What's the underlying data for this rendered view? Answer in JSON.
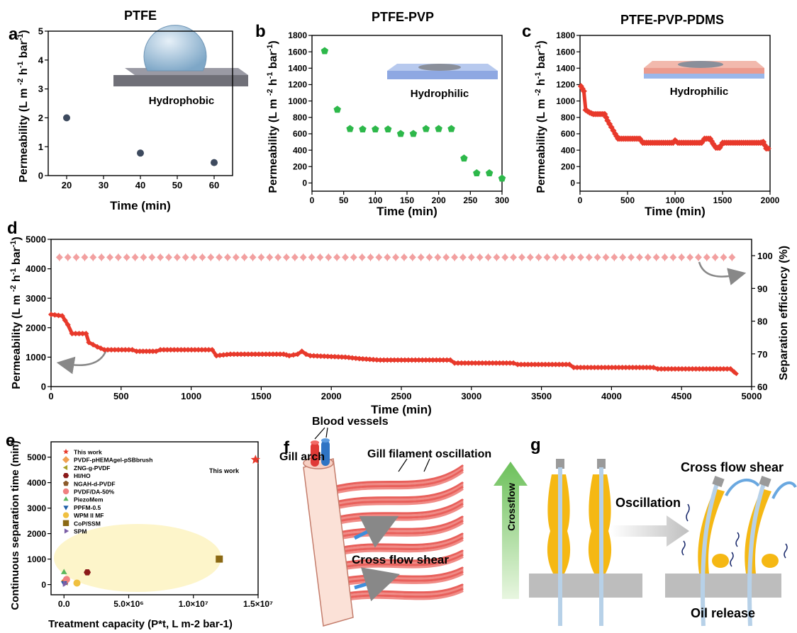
{
  "chart_data": [
    {
      "panel": "a",
      "type": "scatter",
      "title": "PTFE",
      "xlabel": "Time (min)",
      "ylabel": "Permeability (L m-2 h-1 bar-1)",
      "xlim": [
        15,
        65
      ],
      "ylim": [
        0,
        5
      ],
      "xticks": [
        20,
        30,
        40,
        50,
        60
      ],
      "yticks": [
        0,
        1,
        2,
        3,
        4,
        5
      ],
      "annotation": "Hydrophobic",
      "color": "#3d4a5e",
      "points": [
        [
          20,
          2.0
        ],
        [
          40,
          0.78
        ],
        [
          60,
          0.45
        ]
      ]
    },
    {
      "panel": "b",
      "type": "scatter",
      "title": "PTFE-PVP",
      "xlabel": "Time (min)",
      "ylabel": "Permeability (L m-2 h-1 bar-1)",
      "xlim": [
        0,
        300
      ],
      "ylim": [
        -100,
        1800
      ],
      "xticks": [
        0,
        50,
        100,
        150,
        200,
        250,
        300
      ],
      "yticks": [
        0,
        200,
        400,
        600,
        800,
        1000,
        1200,
        1400,
        1600,
        1800
      ],
      "annotation": "Hydrophilic",
      "color": "#2db84a",
      "points": [
        [
          20,
          1610
        ],
        [
          40,
          895
        ],
        [
          60,
          660
        ],
        [
          80,
          655
        ],
        [
          100,
          655
        ],
        [
          120,
          655
        ],
        [
          140,
          600
        ],
        [
          160,
          600
        ],
        [
          180,
          660
        ],
        [
          200,
          660
        ],
        [
          220,
          660
        ],
        [
          240,
          300
        ],
        [
          260,
          120
        ],
        [
          280,
          120
        ],
        [
          300,
          55
        ]
      ]
    },
    {
      "panel": "c",
      "type": "line",
      "title": "PTFE-PVP-PDMS",
      "xlabel": "Time (min)",
      "ylabel": "Permeability (L m-2 h-1 bar-1)",
      "xlim": [
        0,
        2000
      ],
      "ylim": [
        -100,
        1800
      ],
      "xticks": [
        0,
        500,
        1000,
        1500,
        2000
      ],
      "yticks": [
        0,
        200,
        400,
        600,
        800,
        1000,
        1200,
        1400,
        1600,
        1800
      ],
      "annotation": "Hydrophilic",
      "color": "#e8392b",
      "points": [
        [
          10,
          1180
        ],
        [
          40,
          1120
        ],
        [
          60,
          890
        ],
        [
          100,
          860
        ],
        [
          140,
          840
        ],
        [
          260,
          840
        ],
        [
          290,
          760
        ],
        [
          330,
          680
        ],
        [
          370,
          600
        ],
        [
          400,
          540
        ],
        [
          630,
          540
        ],
        [
          660,
          490
        ],
        [
          980,
          490
        ],
        [
          1000,
          520
        ],
        [
          1030,
          490
        ],
        [
          1280,
          490
        ],
        [
          1310,
          540
        ],
        [
          1370,
          540
        ],
        [
          1400,
          480
        ],
        [
          1430,
          430
        ],
        [
          1470,
          430
        ],
        [
          1500,
          490
        ],
        [
          1900,
          490
        ],
        [
          1930,
          500
        ],
        [
          1960,
          420
        ],
        [
          2000,
          420
        ]
      ]
    },
    {
      "panel": "d",
      "type": "line",
      "xlabel": "Time (min)",
      "ylabel": "Permeability (L m-2 h-1 bar-1)",
      "y2label": "Separation efficiency (%)",
      "xlim": [
        0,
        5000
      ],
      "ylim": [
        0,
        5000
      ],
      "y2lim": [
        60,
        105
      ],
      "xticks": [
        0,
        500,
        1000,
        1500,
        2000,
        2500,
        3000,
        3500,
        4000,
        4500,
        5000
      ],
      "yticks": [
        0,
        1000,
        2000,
        3000,
        4000,
        5000
      ],
      "y2ticks": [
        60,
        70,
        80,
        90,
        100
      ],
      "series": [
        {
          "color": "#e8392b",
          "points": [
            [
              0,
              2450
            ],
            [
              80,
              2400
            ],
            [
              120,
              2100
            ],
            [
              150,
              1800
            ],
            [
              250,
              1800
            ],
            [
              270,
              1500
            ],
            [
              330,
              1350
            ],
            [
              380,
              1250
            ],
            [
              580,
              1250
            ],
            [
              610,
              1200
            ],
            [
              750,
              1200
            ],
            [
              780,
              1250
            ],
            [
              1150,
              1250
            ],
            [
              1180,
              1050
            ],
            [
              1280,
              1100
            ],
            [
              1660,
              1100
            ],
            [
              1700,
              1050
            ],
            [
              1760,
              1100
            ],
            [
              1790,
              1200
            ],
            [
              1820,
              1100
            ],
            [
              1850,
              1050
            ],
            [
              2100,
              1000
            ],
            [
              2200,
              950
            ],
            [
              2350,
              900
            ],
            [
              2850,
              900
            ],
            [
              2880,
              800
            ],
            [
              3300,
              800
            ],
            [
              3330,
              750
            ],
            [
              3700,
              750
            ],
            [
              3730,
              650
            ],
            [
              4300,
              650
            ],
            [
              4330,
              600
            ],
            [
              4850,
              600
            ],
            [
              4900,
              400
            ]
          ]
        },
        {
          "axis": "right",
          "color": "#f2a0a0",
          "y_value": 99.5,
          "error": 1.2
        }
      ]
    },
    {
      "panel": "e",
      "type": "scatter",
      "xlabel": "Treatment capacity (P*t, L m-2 bar-1)",
      "ylabel": "Continuous separation time (min)",
      "xlim": [
        -1000000,
        15000000
      ],
      "ylim": [
        -400,
        5600
      ],
      "xticks": [
        "0.0",
        "5.0×10⁶",
        "1.0×10⁷",
        "1.5×10⁷"
      ],
      "yticks": [
        0,
        1000,
        2000,
        3000,
        4000,
        5000
      ],
      "annotation": "This work",
      "legend": [
        {
          "label": "This work",
          "color": "#e8392b",
          "marker": "star"
        },
        {
          "label": "PVDF-pHEMAgel-pSBbrush",
          "color": "#f0a050",
          "marker": "diamond"
        },
        {
          "label": "ZNG-g-PVDF",
          "color": "#a8a028",
          "marker": "tri-left"
        },
        {
          "label": "HI/HO",
          "color": "#8b1a1a",
          "marker": "hexagon"
        },
        {
          "label": "NGAH-d-PVDF",
          "color": "#8b5a2b",
          "marker": "pentagon"
        },
        {
          "label": "PVDF/DA-50%",
          "color": "#f08080",
          "marker": "circle"
        },
        {
          "label": "PiezoMem",
          "color": "#5cb85c",
          "marker": "triangle"
        },
        {
          "label": "PPFM-0.5",
          "color": "#1f5fa8",
          "marker": "tri-down"
        },
        {
          "label": "WPM II MF",
          "color": "#f0c040",
          "marker": "circle"
        },
        {
          "label": "CoP/SSM",
          "color": "#8b6914",
          "marker": "square"
        },
        {
          "label": "SPM",
          "color": "#7b5ea7",
          "marker": "tri-right"
        }
      ],
      "points": [
        {
          "label": "This work",
          "x": 14800000,
          "y": 4900
        },
        {
          "label": "PVDF-pHEMAgel-pSBbrush",
          "x": 100000,
          "y": 150
        },
        {
          "label": "ZNG-g-PVDF",
          "x": 150000,
          "y": 80
        },
        {
          "label": "HI/HO",
          "x": 1800000,
          "y": 480
        },
        {
          "label": "NGAH-d-PVDF",
          "x": 100000,
          "y": 100
        },
        {
          "label": "PVDF/DA-50%",
          "x": 200000,
          "y": 200
        },
        {
          "label": "PiezoMem",
          "x": 0,
          "y": 480
        },
        {
          "label": "PPFM-0.5",
          "x": 0,
          "y": 60
        },
        {
          "label": "WPM II MF",
          "x": 1000000,
          "y": 60
        },
        {
          "label": "CoP/SSM",
          "x": 12000000,
          "y": 1000
        },
        {
          "label": "SPM",
          "x": 50000,
          "y": 30
        }
      ]
    }
  ],
  "panel_letters": [
    "a",
    "b",
    "c",
    "d",
    "e",
    "f",
    "g"
  ],
  "schematic_f": {
    "labels": [
      "Blood vessels",
      "Gill arch",
      "Gill filament oscillation",
      "Cross flow shear"
    ]
  },
  "schematic_g": {
    "labels": [
      "Crossflow",
      "Oscillation",
      "Cross flow shear",
      "Oil release"
    ]
  }
}
